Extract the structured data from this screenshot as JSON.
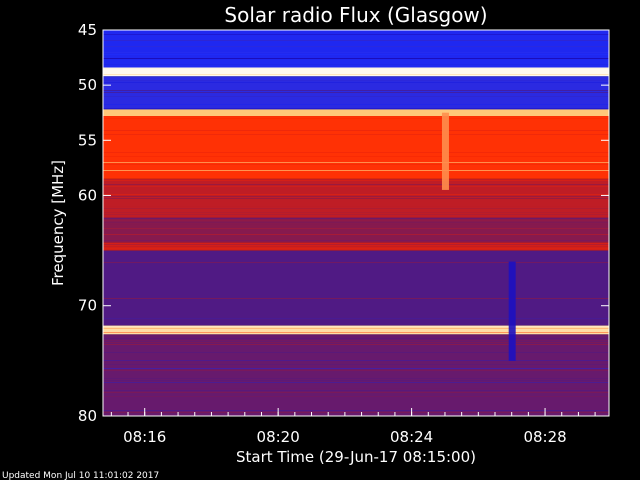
{
  "chart_data": {
    "type": "heatmap",
    "title": "Solar radio Flux (Glasgow)",
    "xlabel": "Start Time (29-Jun-17 08:15:00)",
    "ylabel": "Frequency [MHz]",
    "xlim": [
      "08:14:45",
      "08:29:55"
    ],
    "ylim": [
      45,
      80
    ],
    "x_ticks": [
      "08:16",
      "08:20",
      "08:24",
      "08:28"
    ],
    "y_ticks": [
      45,
      50,
      55,
      60,
      70,
      80
    ],
    "y_axis_direction": "downward",
    "colormap": [
      "#1a00a0",
      "#2030ff",
      "#4a1a8a",
      "#8a1a4a",
      "#c81e1e",
      "#ff2a00",
      "#ffd080",
      "#ffffff"
    ],
    "bands": [
      {
        "from": 44.5,
        "to": 48.4,
        "level": 0.12
      },
      {
        "from": 48.4,
        "to": 49.2,
        "level": 0.98
      },
      {
        "from": 49.2,
        "to": 52.2,
        "level": 0.18
      },
      {
        "from": 52.2,
        "to": 52.8,
        "level": 0.85
      },
      {
        "from": 52.8,
        "to": 58.5,
        "level": 0.72
      },
      {
        "from": 58.5,
        "to": 62.0,
        "level": 0.55
      },
      {
        "from": 62.0,
        "to": 64.3,
        "level": 0.42
      },
      {
        "from": 64.3,
        "to": 65.0,
        "level": 0.6
      },
      {
        "from": 65.0,
        "to": 71.8,
        "level": 0.3
      },
      {
        "from": 71.8,
        "to": 72.6,
        "level": 0.9
      },
      {
        "from": 72.6,
        "to": 80.5,
        "level": 0.35
      }
    ],
    "events": [
      {
        "time": "08:25:00",
        "freq_from": 52.5,
        "freq_to": 59.5,
        "level": 0.8
      },
      {
        "time": "08:27:00",
        "freq_from": 66.0,
        "freq_to": 75.0,
        "level": 0.05
      }
    ]
  },
  "footer": "Updated Mon Jul 10 11:01:02 2017"
}
